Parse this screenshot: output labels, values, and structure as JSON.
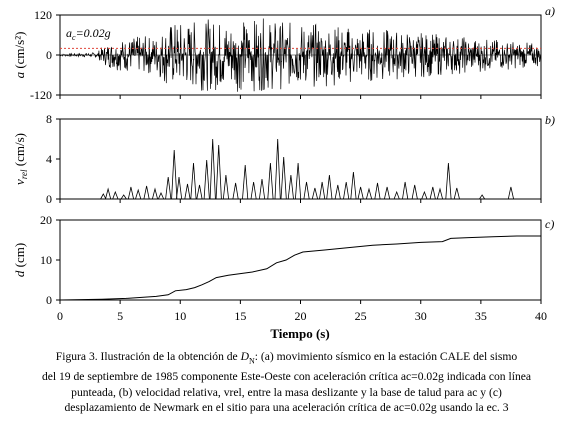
{
  "figure": {
    "x_axis": {
      "label": "Tiempo (s)",
      "min": 0,
      "max": 40,
      "ticks": [
        0,
        5,
        10,
        15,
        20,
        25,
        30,
        35,
        40
      ]
    },
    "panels": [
      {
        "id": "a",
        "panel_label": "a)",
        "ylabel_main": "a",
        "ylabel_unit": " (cm/s²)",
        "ylim": [
          -120,
          120
        ],
        "yticks": [
          -120,
          0,
          120
        ],
        "critical_line": {
          "value": 20,
          "label": "ac=0.02g",
          "color": "#e0453a"
        }
      },
      {
        "id": "b",
        "panel_label": "b)",
        "ylabel_main": "v",
        "ylabel_sub": "rel",
        "ylabel_unit": " (cm/s)",
        "ylim": [
          0,
          8
        ],
        "yticks": [
          0,
          4,
          8
        ]
      },
      {
        "id": "c",
        "panel_label": "c)",
        "ylabel_main": "d",
        "ylabel_unit": " (cm)",
        "ylim": [
          0,
          20
        ],
        "yticks": [
          0,
          10,
          20
        ]
      }
    ]
  },
  "chart_data": [
    {
      "type": "line",
      "panel": "a",
      "xlabel": "Tiempo (s)",
      "ylabel": "a (cm/s2)",
      "xlim": [
        0,
        40
      ],
      "ylim": [
        -120,
        120
      ],
      "grid": false,
      "series": [
        {
          "values_kind": "dense acceleration record (approximate, peaks about ±120 cm/s2)",
          "envelope": [
            [
              0,
              3
            ],
            [
              3,
              8
            ],
            [
              4,
              40
            ],
            [
              6,
              55
            ],
            [
              8,
              60
            ],
            [
              9,
              100
            ],
            [
              11,
              105
            ],
            [
              13,
              110
            ],
            [
              17,
              110
            ],
            [
              19,
              100
            ],
            [
              22,
              95
            ],
            [
              25,
              85
            ],
            [
              28,
              75
            ],
            [
              31,
              65
            ],
            [
              34,
              55
            ],
            [
              37,
              45
            ],
            [
              40,
              35
            ]
          ]
        }
      ],
      "reference_line": {
        "y": 20,
        "label": "ac=0.02g"
      }
    },
    {
      "type": "line",
      "panel": "b",
      "xlabel": "Tiempo (s)",
      "ylabel": "vrel (cm/s)",
      "xlim": [
        0,
        40
      ],
      "ylim": [
        0,
        8
      ],
      "grid": false,
      "pulses": [
        [
          3.6,
          0.5
        ],
        [
          4.0,
          1.0
        ],
        [
          4.6,
          0.7
        ],
        [
          5.3,
          0.4
        ],
        [
          5.9,
          1.2
        ],
        [
          6.5,
          0.9
        ],
        [
          7.2,
          1.3
        ],
        [
          7.9,
          1.0
        ],
        [
          8.4,
          0.6
        ],
        [
          9.0,
          2.2
        ],
        [
          9.5,
          4.9
        ],
        [
          9.9,
          2.2
        ],
        [
          10.6,
          1.5
        ],
        [
          11.1,
          3.6
        ],
        [
          11.6,
          1.4
        ],
        [
          12.2,
          3.9
        ],
        [
          12.7,
          6.0
        ],
        [
          13.2,
          5.4
        ],
        [
          13.8,
          2.4
        ],
        [
          14.6,
          1.6
        ],
        [
          15.4,
          3.4
        ],
        [
          16.1,
          1.7
        ],
        [
          16.8,
          2.0
        ],
        [
          17.5,
          3.6
        ],
        [
          18.1,
          6.0
        ],
        [
          18.6,
          4.2
        ],
        [
          19.2,
          2.4
        ],
        [
          19.8,
          3.6
        ],
        [
          20.5,
          1.7
        ],
        [
          21.2,
          1.1
        ],
        [
          21.8,
          1.7
        ],
        [
          22.4,
          2.4
        ],
        [
          23.1,
          1.4
        ],
        [
          23.8,
          1.7
        ],
        [
          24.4,
          2.7
        ],
        [
          25.0,
          1.2
        ],
        [
          25.7,
          1.0
        ],
        [
          26.4,
          1.6
        ],
        [
          27.2,
          1.2
        ],
        [
          28.0,
          0.7
        ],
        [
          28.7,
          1.7
        ],
        [
          29.5,
          1.4
        ],
        [
          30.3,
          0.7
        ],
        [
          31.0,
          1.2
        ],
        [
          31.6,
          1.0
        ],
        [
          32.3,
          3.6
        ],
        [
          33.0,
          1.1
        ],
        [
          35.1,
          0.4
        ],
        [
          37.5,
          1.2
        ]
      ]
    },
    {
      "type": "line",
      "panel": "c",
      "xlabel": "Tiempo (s)",
      "ylabel": "d (cm)",
      "xlim": [
        0,
        40
      ],
      "ylim": [
        0,
        20
      ],
      "grid": false,
      "series": [
        {
          "x": [
            0,
            3.5,
            5.5,
            8,
            9,
            9.6,
            10.5,
            11.2,
            11.8,
            12.4,
            13,
            14,
            16,
            17.2,
            18,
            18.8,
            19.5,
            20.2,
            22,
            24,
            26,
            28,
            30,
            31.8,
            32.5,
            34,
            36,
            38,
            40
          ],
          "y": [
            0,
            0.2,
            0.4,
            0.9,
            1.3,
            2.3,
            2.6,
            3.1,
            3.8,
            4.6,
            5.6,
            6.2,
            7.0,
            7.8,
            9.3,
            10.0,
            11.2,
            12.0,
            12.5,
            13.1,
            13.7,
            14.0,
            14.4,
            14.6,
            15.4,
            15.6,
            15.8,
            16.0,
            16.0
          ]
        }
      ]
    }
  ],
  "caption": {
    "line1_pre": "Figura 3. Ilustración de la obtención de ",
    "dn_main": "D",
    "dn_sub": "N",
    "line1_post": ": (a) movimiento sísmico en la estación CALE del sismo",
    "line2": "del 19 de septiembre de 1985 componente Este-Oeste con aceleración crítica ac=0.02g indicada con línea",
    "line3": "punteada, (b) velocidad relativa, vrel, entre la masa deslizante y la base de talud para ac y (c)",
    "line4": "desplazamiento de Newmark en el sitio para una aceleración crítica de ac=0.02g usando la ec. 3"
  }
}
